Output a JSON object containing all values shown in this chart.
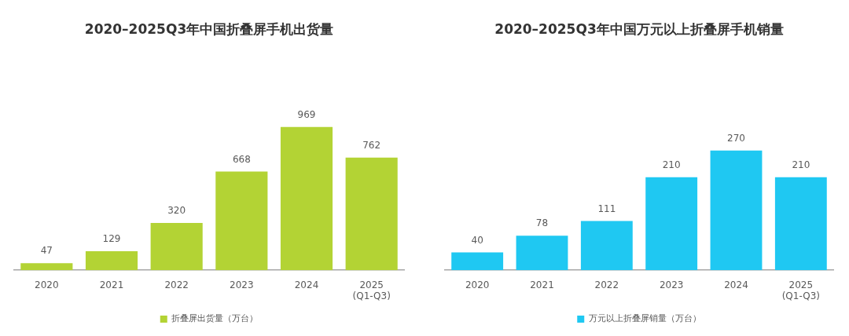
{
  "chart_data": [
    {
      "type": "bar",
      "title": "2020–2025Q3年中国折叠屏手机出货量",
      "categories": [
        "2020",
        "2021",
        "2022",
        "2023",
        "2024",
        "2025\n(Q1-Q3)"
      ],
      "series": [
        {
          "name": "折叠屏出货量（万台）",
          "color": "#b3d334",
          "values": [
            47,
            129,
            320,
            668,
            969,
            762
          ]
        }
      ],
      "data_labels": true,
      "legend": "bottom",
      "tick_labels": "x"
    },
    {
      "type": "bar",
      "title": "2020–2025Q3年中国万元以上折叠屏手机销量",
      "categories": [
        "2020",
        "2021",
        "2022",
        "2023",
        "2024",
        "2025\n(Q1-Q3)"
      ],
      "series": [
        {
          "name": "万元以上折叠屏销量（万台）",
          "color": "#1fc8f2",
          "values": [
            40,
            78,
            111,
            210,
            270,
            210
          ]
        }
      ],
      "data_labels": true,
      "legend": "bottom",
      "tick_labels": "x"
    }
  ]
}
